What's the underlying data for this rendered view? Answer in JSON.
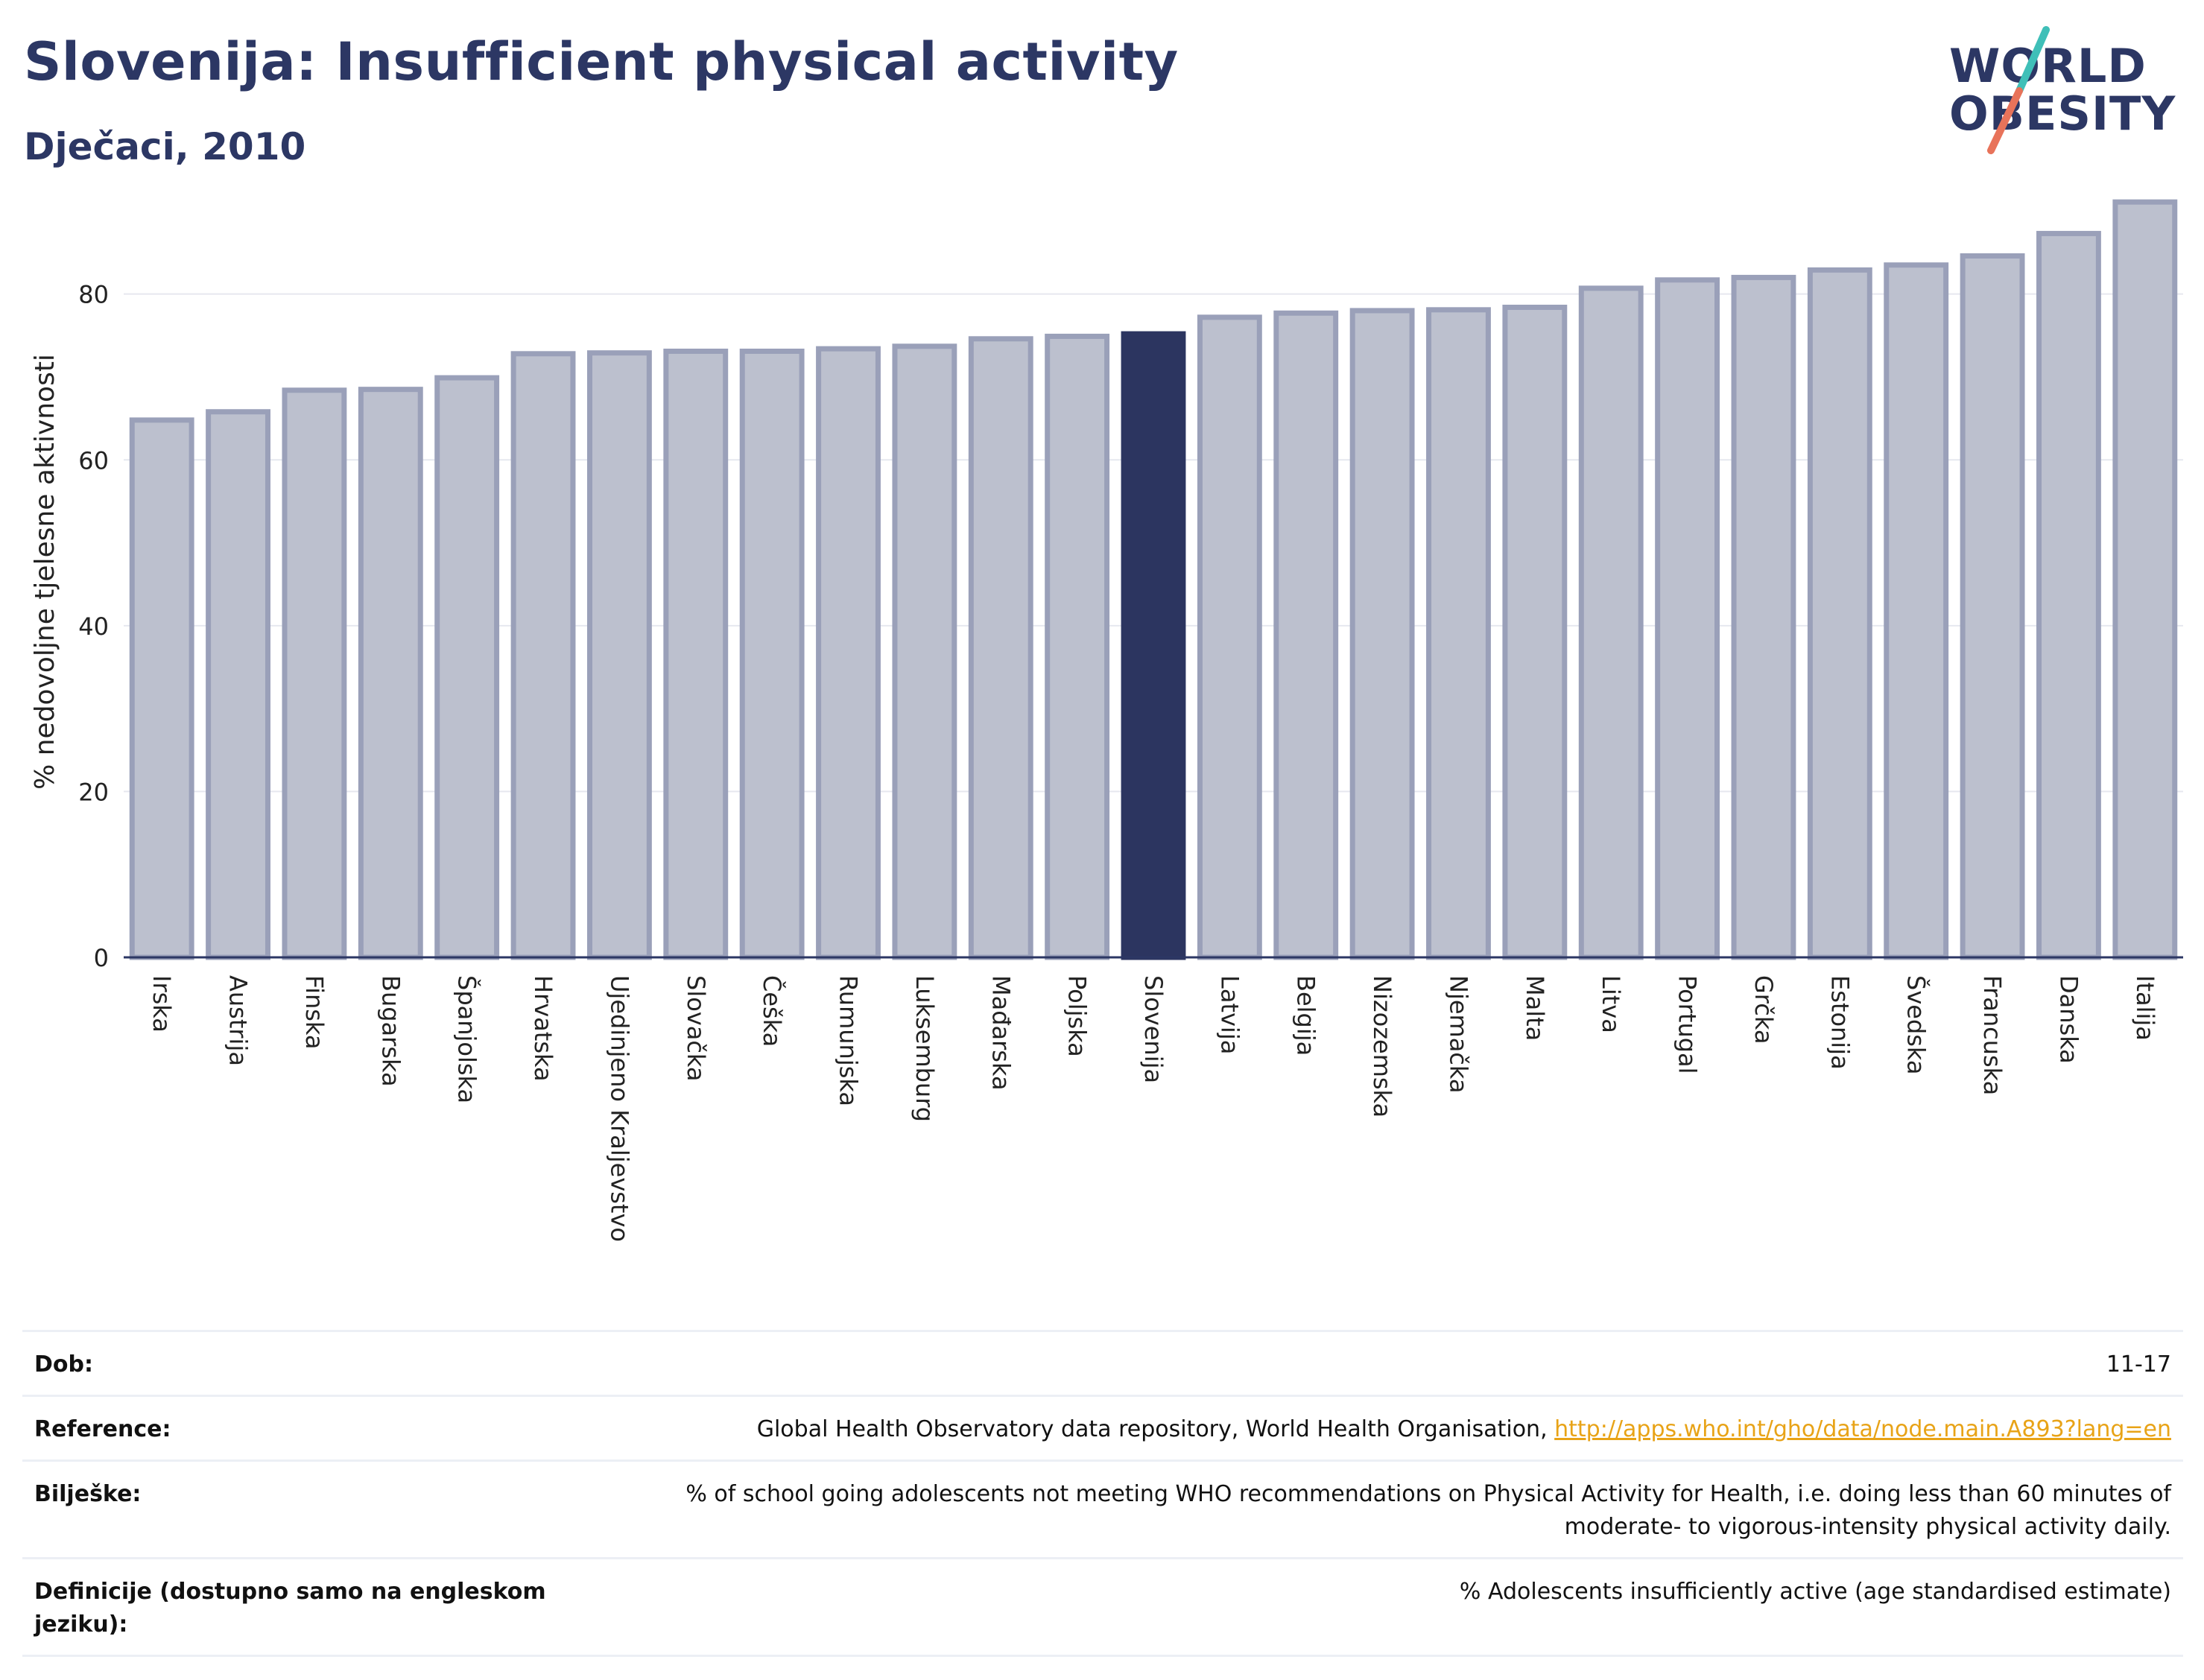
{
  "header": {
    "title": "Slovenija: Insufficient physical activity",
    "subtitle": "Dječaci, 2010"
  },
  "logo": {
    "line1": "WORLD",
    "line2": "OBESITY",
    "colors": {
      "text": "#2c3764",
      "slash_top": "#3fbfb8",
      "slash_bottom": "#e8735a"
    }
  },
  "colors": {
    "bar_fill": "#bcc0ce",
    "bar_stroke": "#9aa0b9",
    "highlight": "#2c3560",
    "grid": "#e6e8ef",
    "axis": "#2c3764"
  },
  "chart_data": {
    "type": "bar",
    "ylabel": "% nedovoljne tjelesne aktivnosti",
    "ylim": [
      0,
      93
    ],
    "yticks": [
      0,
      20,
      40,
      60,
      80
    ],
    "grid": true,
    "highlight_category": "Slovenija",
    "categories": [
      "Irska",
      "Austrija",
      "Finska",
      "Bugarska",
      "Španjolska",
      "Hrvatska",
      "Ujedinjeno Kraljevstvo",
      "Slovačka",
      "Češka",
      "Rumunjska",
      "Luksemburg",
      "Mađarska",
      "Poljska",
      "Slovenija",
      "Latvija",
      "Belgija",
      "Nizozemska",
      "Njemačka",
      "Malta",
      "Litva",
      "Portugal",
      "Grčka",
      "Estonija",
      "Švedska",
      "Francuska",
      "Danska",
      "Italija"
    ],
    "values": [
      64.8,
      65.8,
      68.4,
      68.5,
      69.9,
      72.8,
      72.9,
      73.1,
      73.1,
      73.4,
      73.7,
      74.6,
      74.9,
      75.2,
      77.2,
      77.7,
      78.0,
      78.1,
      78.4,
      80.7,
      81.7,
      82.0,
      82.9,
      83.5,
      84.6,
      87.3,
      91.1
    ]
  },
  "details": [
    {
      "label": "Dob:",
      "value": "11-17"
    },
    {
      "label": "Reference:",
      "value": "Global Health Observatory data repository, World Health Organisation, ",
      "link": "http://apps.who.int/gho/data/node.main.A893?lang=en"
    },
    {
      "label": "Bilješke:",
      "value": "% of school going adolescents not meeting WHO recommendations on Physical Activity for Health, i.e. doing less than 60 minutes of moderate- to vigorous-intensity physical activity daily."
    },
    {
      "label": "Definicije (dostupno samo na engleskom jeziku):",
      "value": "% Adolescents insufficiently active (age standardised estimate)"
    }
  ]
}
